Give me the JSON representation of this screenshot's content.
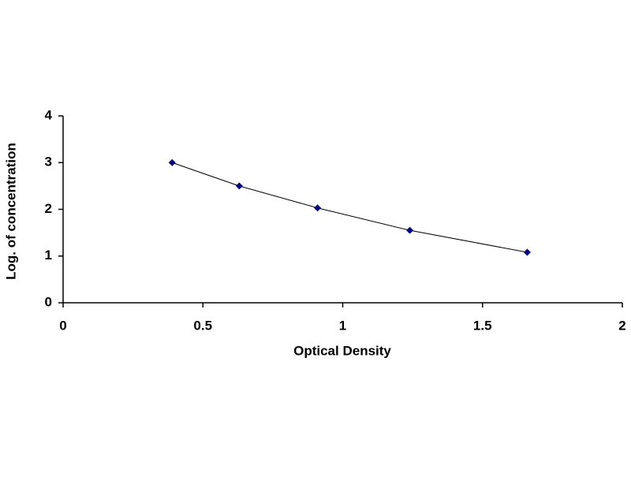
{
  "chart_data": {
    "type": "scatter",
    "x_label": "Optical Density",
    "y_label": "Log. of concentration",
    "x": [
      0.39,
      0.63,
      0.91,
      1.24,
      1.66
    ],
    "values": [
      3.0,
      2.5,
      2.03,
      1.55,
      1.08
    ],
    "color": "#000080",
    "line_color": "#000000",
    "xlim": [
      0,
      2
    ],
    "xticks": [
      0,
      0.5,
      1,
      1.5,
      2
    ],
    "ylim": [
      0,
      4
    ],
    "yticks": [
      0,
      1,
      2,
      3,
      4
    ],
    "grid": false
  }
}
